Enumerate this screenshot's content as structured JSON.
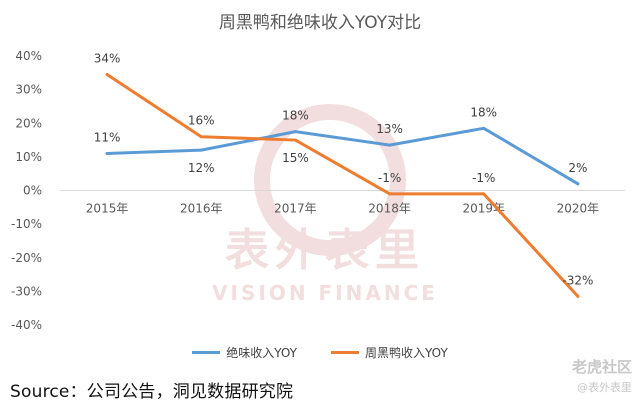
{
  "source_text": "Source：公司公告，洞见数据研究院",
  "brand": {
    "corner_main": "老虎社区",
    "corner_sub": "@表外表里",
    "watermark_main": "表外表里",
    "watermark_sub": "VISION FINANCE"
  },
  "colors": {
    "series1": "#5b9bd5",
    "series2": "#ed7d31",
    "grid": "#d9d9d9",
    "axis_text": "#595959",
    "label_text": "#404040",
    "watermark": "#f2dede"
  },
  "chart_data": {
    "type": "line",
    "title": "周黑鸭和绝味收入YOY对比",
    "xlabel": "",
    "ylabel": "",
    "categories": [
      "2015年",
      "2016年",
      "2017年",
      "2018年",
      "2019年",
      "2020年"
    ],
    "y_ticks": [
      "40%",
      "30%",
      "20%",
      "10%",
      "0%",
      "-10%",
      "-20%",
      "-30%",
      "-40%"
    ],
    "ylim": [
      -40,
      40
    ],
    "grid": false,
    "legend_position": "bottom",
    "series": [
      {
        "name": "绝味收入YOY",
        "values": [
          11,
          12,
          17.5,
          13.5,
          18.5,
          2
        ],
        "labels": [
          "11%",
          "12%",
          "18%",
          "13%",
          "18%",
          "2%"
        ],
        "label_side": [
          "above",
          "below",
          "above",
          "above",
          "above",
          "above"
        ]
      },
      {
        "name": "周黑鸭收入YOY",
        "values": [
          34.5,
          16,
          15,
          -1,
          -1,
          -31.5
        ],
        "labels": [
          "34%",
          "16%",
          "15%",
          "-1%",
          "-1%",
          "-32%"
        ],
        "label_side": [
          "above",
          "above",
          "below",
          "above",
          "above",
          "above"
        ]
      }
    ]
  }
}
